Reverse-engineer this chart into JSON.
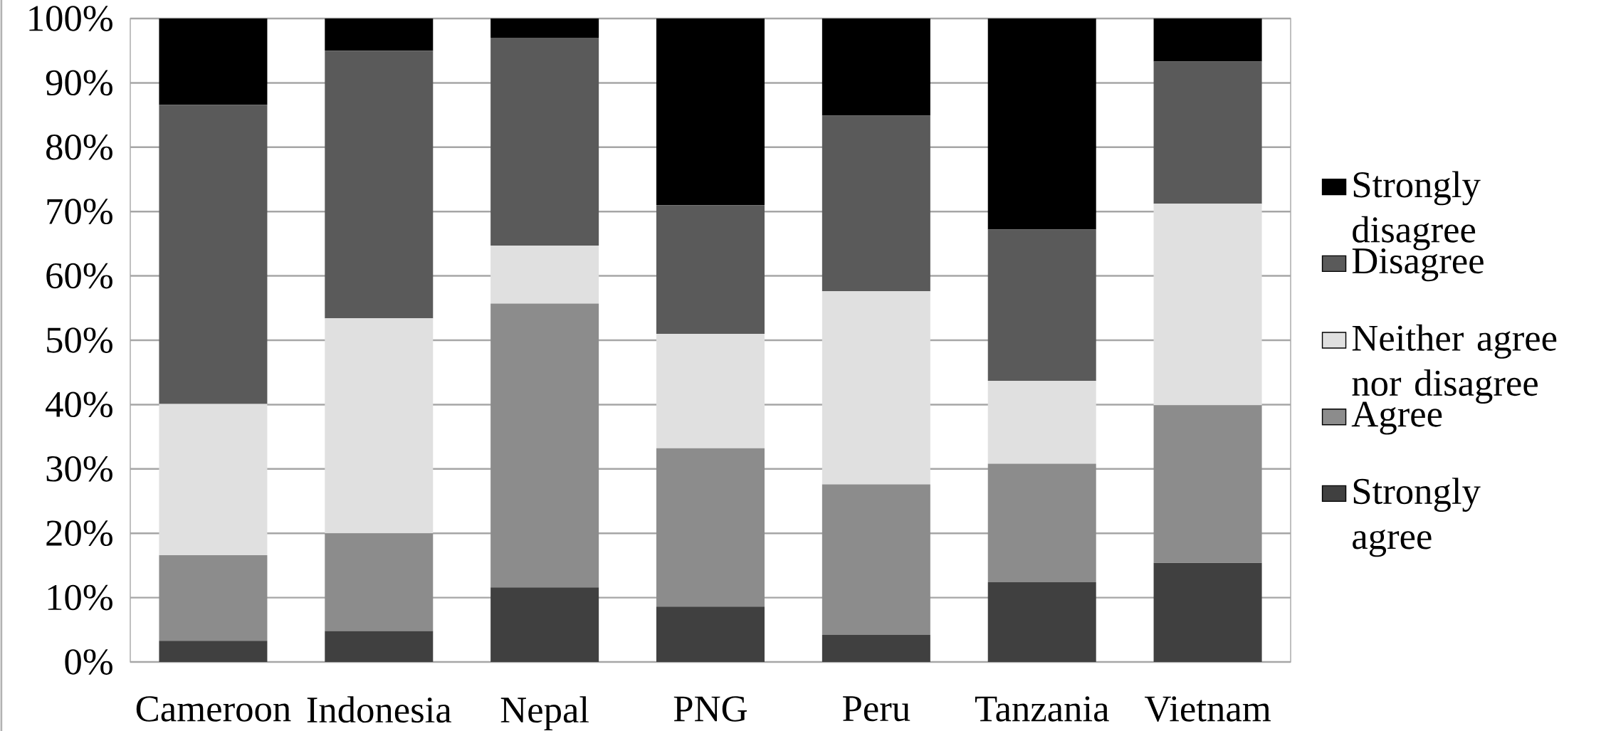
{
  "chart_data": {
    "type": "bar",
    "stacked": true,
    "categories": [
      "Cameroon",
      "Indonesia",
      "Nepal",
      "PNG",
      "Peru",
      "Tanzania",
      "Vietnam"
    ],
    "series": [
      {
        "name": "Strongly agree",
        "color": "#404040",
        "values": [
          3.3,
          4.8,
          11.6,
          8.6,
          4.2,
          12.4,
          15.4
        ]
      },
      {
        "name": "Agree",
        "color": "#8c8c8c",
        "values": [
          13.3,
          15.2,
          44.1,
          24.6,
          23.4,
          18.4,
          24.5
        ]
      },
      {
        "name": "Neither agree nor disagree",
        "color": "#e0e0e0",
        "values": [
          23.5,
          33.4,
          9.0,
          17.8,
          30.0,
          12.9,
          31.3
        ]
      },
      {
        "name": "Disagree",
        "color": "#5a5a5a",
        "values": [
          46.5,
          41.6,
          32.3,
          20.0,
          27.3,
          23.5,
          22.1
        ]
      },
      {
        "name": "Strongly disagree",
        "color": "#000000",
        "values": [
          13.4,
          5.0,
          3.0,
          29.0,
          15.1,
          32.8,
          6.7
        ]
      }
    ],
    "ylim": [
      0,
      100
    ],
    "yticks": [
      {
        "value": 0,
        "label": "0%"
      },
      {
        "value": 10,
        "label": "10%"
      },
      {
        "value": 20,
        "label": "20%"
      },
      {
        "value": 30,
        "label": "30%"
      },
      {
        "value": 40,
        "label": "40%"
      },
      {
        "value": 50,
        "label": "50%"
      },
      {
        "value": 60,
        "label": "60%"
      },
      {
        "value": 70,
        "label": "70%"
      },
      {
        "value": 80,
        "label": "80%"
      },
      {
        "value": 90,
        "label": "90%"
      },
      {
        "value": 100,
        "label": "100%"
      }
    ],
    "grid": "y",
    "legend": "right"
  }
}
